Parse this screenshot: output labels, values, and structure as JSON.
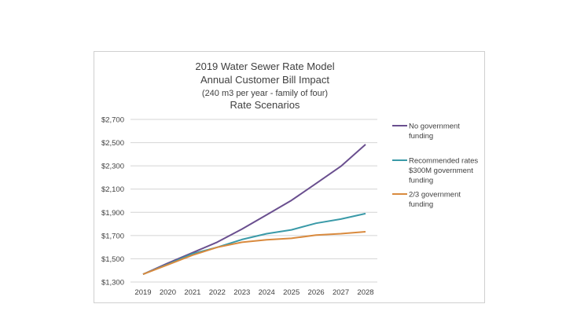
{
  "chart_data": {
    "type": "line",
    "title": [
      "2019 Water Sewer Rate Model",
      "Annual Customer Bill Impact",
      "(240 m3 per year - family of four)",
      "Rate Scenarios"
    ],
    "xlabel": "",
    "ylabel": "",
    "categories": [
      "2019",
      "2020",
      "2021",
      "2022",
      "2023",
      "2024",
      "2025",
      "2026",
      "2027",
      "2028"
    ],
    "ylim": [
      1300,
      2700
    ],
    "yticks": [
      1300,
      1500,
      1700,
      1900,
      2100,
      2300,
      2500,
      2700
    ],
    "ytick_labels": [
      "$1,300",
      "$1,500",
      "$1,700",
      "$1,900",
      "$2,100",
      "$2,300",
      "$2,500",
      "$2,700"
    ],
    "grid": "horizontal",
    "legend_position": "right",
    "series": [
      {
        "name": "No government funding",
        "legend_lines": [
          "No government",
          "funding"
        ],
        "color": "#6a4f8f",
        "values": [
          1367,
          1462,
          1552,
          1643,
          1756,
          1878,
          2003,
          2148,
          2296,
          2484
        ]
      },
      {
        "name": "Recommended rates $300M government funding",
        "legend_lines": [
          "Recommended rates",
          "$300M government",
          "funding"
        ],
        "color": "#3a9aa8",
        "values": [
          1367,
          1453,
          1543,
          1599,
          1666,
          1716,
          1749,
          1806,
          1842,
          1889
        ]
      },
      {
        "name": "2/3 government funding",
        "legend_lines": [
          "2/3 government",
          "funding"
        ],
        "color": "#d98a3e",
        "values": [
          1367,
          1448,
          1531,
          1599,
          1642,
          1664,
          1676,
          1704,
          1716,
          1733
        ]
      }
    ]
  }
}
